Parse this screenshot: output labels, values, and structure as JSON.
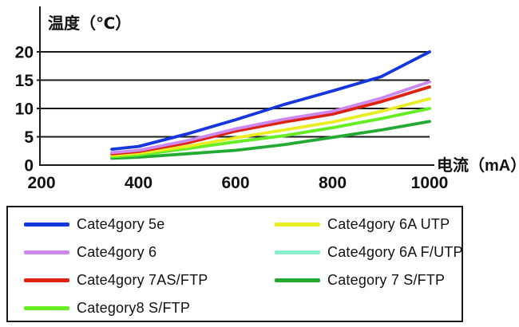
{
  "chart": {
    "ylabel": "温度（℃）",
    "xlabel": "电流（mA）",
    "axis_color": "#1a1a1a",
    "y_ticks": [
      0,
      5,
      10,
      15,
      20
    ],
    "x_ticks": [
      200,
      400,
      600,
      800,
      1000
    ]
  },
  "chart_data": {
    "type": "line",
    "title": "",
    "xlabel": "电流（mA）",
    "ylabel": "温度（℃）",
    "xlim": [
      200,
      1000
    ],
    "ylim": [
      0,
      20
    ],
    "grid": "horizontal-only",
    "gridline_y_values": [
      5,
      10,
      15,
      20
    ],
    "legend_position": "bottom-box",
    "x": [
      345,
      400,
      500,
      600,
      700,
      800,
      900,
      1000
    ],
    "series": [
      {
        "name": "Category 7 S/FTP",
        "color": "#22aa33",
        "values": [
          1.2,
          1.4,
          2.0,
          2.6,
          3.6,
          4.9,
          6.2,
          7.7
        ]
      },
      {
        "name": "Cate4gory 6A F/UTP",
        "color": "#88eecc",
        "values": [
          1.5,
          1.8,
          2.9,
          4.1,
          5.2,
          6.6,
          8.2,
          10.0
        ],
        "note": "overlapped by Category8 S/FTP line"
      },
      {
        "name": "Category8 S/FTP",
        "color": "#66ee22",
        "values": [
          1.5,
          1.8,
          2.9,
          4.1,
          5.2,
          6.6,
          8.2,
          10.0
        ]
      },
      {
        "name": "Cate4gory 6A UTP",
        "color": "#e8ee22",
        "values": [
          1.7,
          2.1,
          3.3,
          4.8,
          6.2,
          7.6,
          9.5,
          11.7
        ]
      },
      {
        "name": "Cate4gory 7AS/FTP",
        "color": "#dd2211",
        "values": [
          2.0,
          2.4,
          3.9,
          6.0,
          7.6,
          9.0,
          11.2,
          13.8
        ]
      },
      {
        "name": "Cate4gory 6",
        "color": "#cc88ee",
        "values": [
          2.2,
          2.6,
          4.3,
          6.4,
          8.1,
          9.5,
          11.8,
          14.7
        ]
      },
      {
        "name": "Cate4gory 5e",
        "color": "#1536dd",
        "values": [
          2.8,
          3.3,
          5.5,
          8.0,
          10.7,
          13.1,
          15.6,
          20.0
        ]
      }
    ]
  },
  "legend": {
    "columns": [
      [
        {
          "label": "Cate4gory 5e",
          "color": "#1536dd"
        },
        {
          "label": "Cate4gory 6",
          "color": "#cc88ee"
        },
        {
          "label": "Cate4gory 7AS/FTP",
          "color": "#dd2211"
        },
        {
          "label": "Category8 S/FTP",
          "color": "#66ee22"
        }
      ],
      [
        {
          "label": "Cate4gory 6A UTP",
          "color": "#e8ee22"
        },
        {
          "label": "Cate4gory 6A F/UTP",
          "color": "#88eecc"
        },
        {
          "label": "Category 7 S/FTP",
          "color": "#22aa33"
        }
      ]
    ]
  }
}
